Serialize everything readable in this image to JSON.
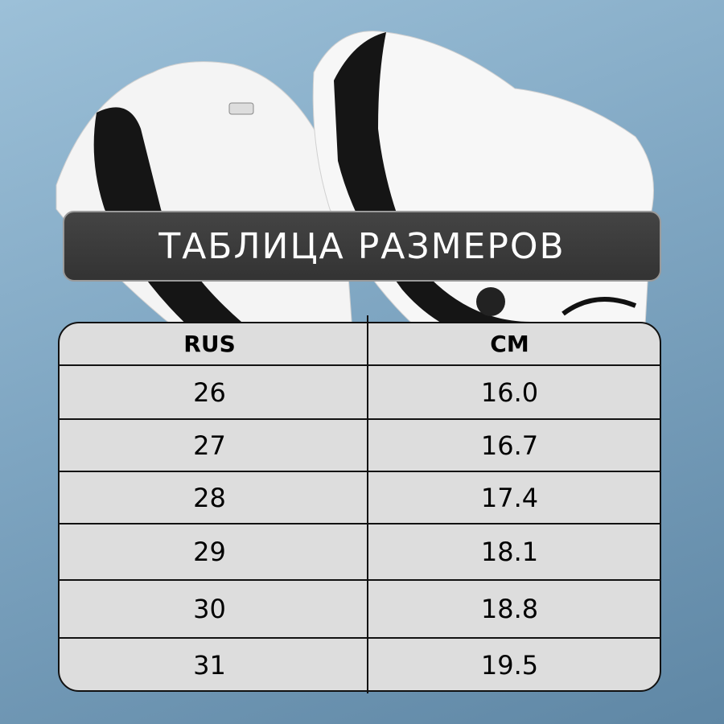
{
  "title": "ТАБЛИЦА РАЗМЕРОВ",
  "table": {
    "headers": [
      "RUS",
      "CM"
    ],
    "rows": [
      [
        "26",
        "16.0"
      ],
      [
        "27",
        "16.7"
      ],
      [
        "28",
        "17.4"
      ],
      [
        "29",
        "18.1"
      ],
      [
        "30",
        "18.8"
      ],
      [
        "31",
        "19.5"
      ]
    ]
  },
  "colors": {
    "background": "#7fa6c2",
    "banner": "#3a3a3a",
    "table": "#dddddd"
  }
}
